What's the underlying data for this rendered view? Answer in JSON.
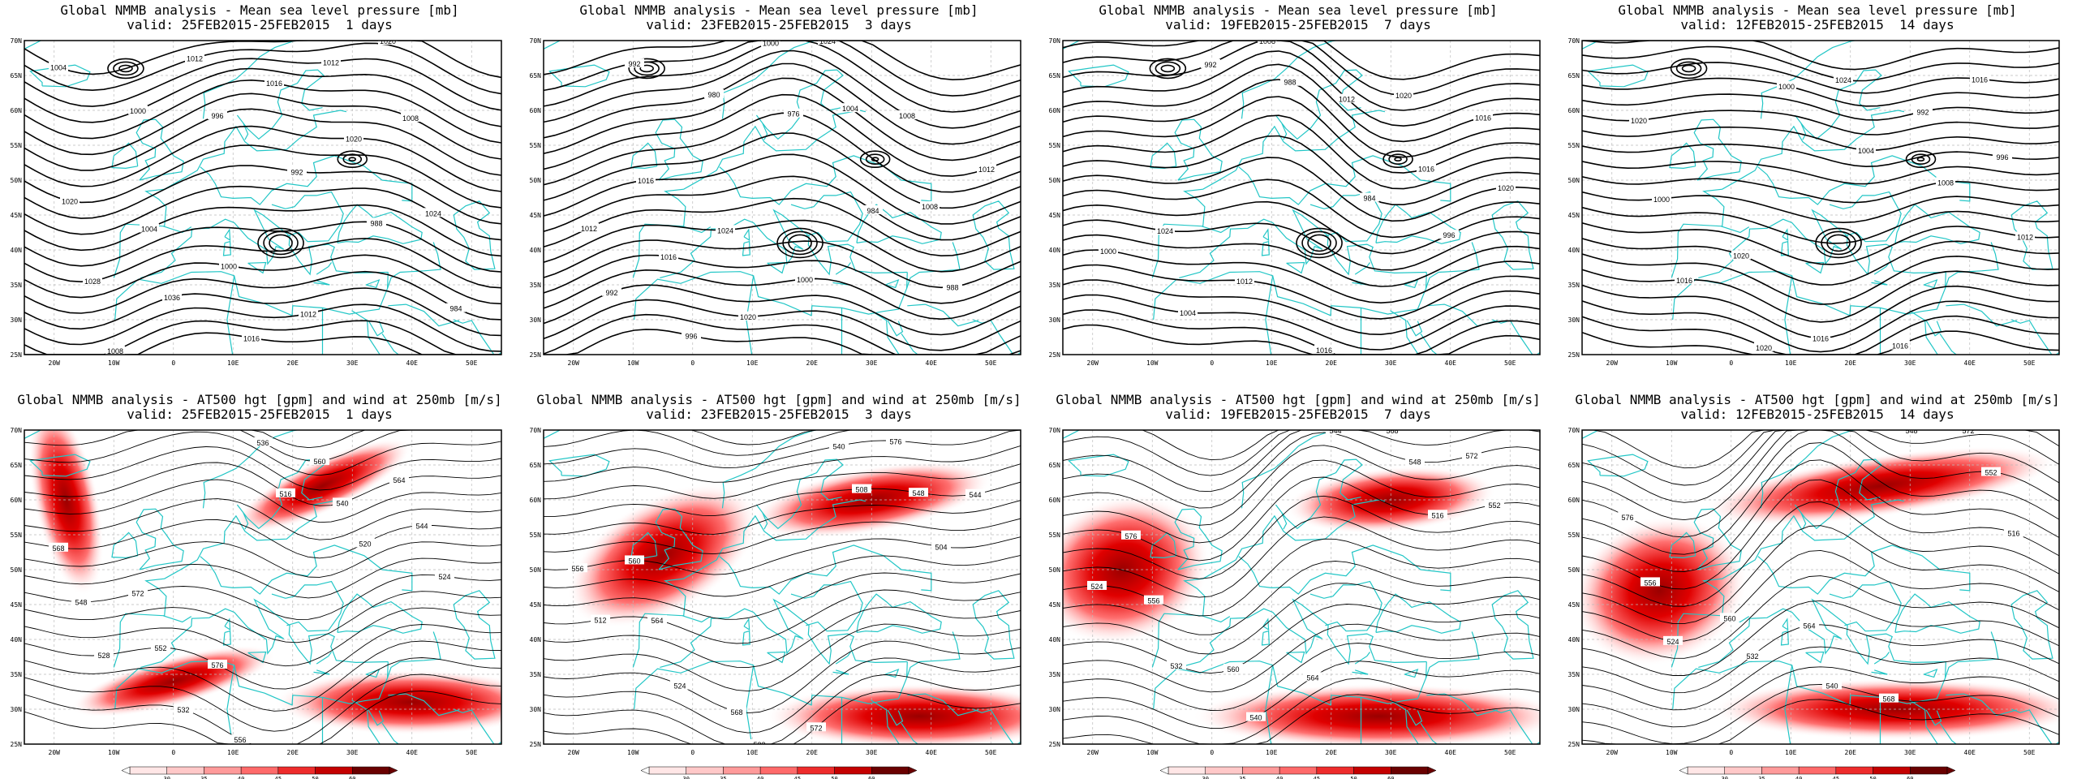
{
  "colors": {
    "coast": "#22c6c6",
    "contour": "#000000",
    "grid": "#bbbbbb"
  },
  "axes": {
    "lat_labels": [
      "25N",
      "30N",
      "35N",
      "40N",
      "45N",
      "50N",
      "55N",
      "60N",
      "65N",
      "70N"
    ],
    "lon_labels": [
      "20W",
      "10W",
      "0",
      "10E",
      "20E",
      "30E",
      "40E",
      "50E"
    ]
  },
  "colorbar": {
    "ticks": [
      "30",
      "35",
      "40",
      "45",
      "50",
      "60"
    ],
    "colors": [
      "#ffe6e6",
      "#ffc8c8",
      "#ff9a9a",
      "#ff6a6a",
      "#ee2b2b",
      "#c40000",
      "#6a0000"
    ]
  },
  "panels": [
    {
      "title1": "Global NMMB analysis - Mean sea level pressure [mb]",
      "title2": "valid: 25FEB2015-25FEB2015  1 days",
      "labels": [
        "1004",
        "1000",
        "996",
        "992",
        "988",
        "984",
        "1008",
        "1012",
        "1016",
        "1020",
        "1024",
        "1028",
        "1036",
        "1016",
        "1012",
        "1008",
        "1020",
        "1004",
        "1000",
        "1012",
        "1020"
      ]
    },
    {
      "title1": "Global NMMB analysis - Mean sea level pressure [mb]",
      "title2": "valid: 23FEB2015-25FEB2015  3 days",
      "labels": [
        "992",
        "980",
        "976",
        "984",
        "988",
        "992",
        "996",
        "1000",
        "1004",
        "1008",
        "1012",
        "1016",
        "1020",
        "1024",
        "1008",
        "1012",
        "1016",
        "1024",
        "1000"
      ]
    },
    {
      "title1": "Global NMMB analysis - Mean sea level pressure [mb]",
      "title2": "valid: 19FEB2015-25FEB2015  7 days",
      "labels": [
        "992",
        "988",
        "984",
        "996",
        "1000",
        "1004",
        "1008",
        "1012",
        "1016",
        "1020",
        "1024",
        "1012",
        "1016",
        "1020",
        "1016"
      ]
    },
    {
      "title1": "Global NMMB analysis - Mean sea level pressure [mb]",
      "title2": "valid: 12FEB2015-25FEB2015  14 days",
      "labels": [
        "1000",
        "1004",
        "1008",
        "1012",
        "1016",
        "1020",
        "1024",
        "992",
        "996",
        "1000",
        "1020",
        "1016",
        "1016",
        "1016",
        "1020"
      ]
    },
    {
      "title1": "Global NMMB analysis - AT500 hgt [gpm] and wind at 250mb [m/s]",
      "title2": "valid: 25FEB2015-25FEB2015  1 days",
      "labels": [
        "516",
        "520",
        "524",
        "528",
        "532",
        "536",
        "540",
        "544",
        "548",
        "552",
        "556",
        "560",
        "564",
        "568",
        "572",
        "576"
      ]
    },
    {
      "title1": "Global NMMB analysis - AT500 hgt [gpm] and wind at 250mb [m/s]",
      "title2": "valid: 23FEB2015-25FEB2015  3 days",
      "labels": [
        "508",
        "504",
        "512",
        "524",
        "532",
        "540",
        "548",
        "556",
        "564",
        "568",
        "572",
        "576",
        "544",
        "560"
      ]
    },
    {
      "title1": "Global NMMB analysis - AT500 hgt [gpm] and wind at 250mb [m/s]",
      "title2": "valid: 19FEB2015-25FEB2015  7 days",
      "labels": [
        "516",
        "524",
        "532",
        "540",
        "544",
        "548",
        "552",
        "556",
        "560",
        "564",
        "568",
        "572",
        "576"
      ]
    },
    {
      "title1": "Global NMMB analysis - AT500 hgt [gpm] and wind at 250mb [m/s]",
      "title2": "valid: 12FEB2015-25FEB2015  14 days",
      "labels": [
        "516",
        "524",
        "532",
        "540",
        "548",
        "552",
        "556",
        "560",
        "564",
        "568",
        "572",
        "576"
      ]
    }
  ]
}
